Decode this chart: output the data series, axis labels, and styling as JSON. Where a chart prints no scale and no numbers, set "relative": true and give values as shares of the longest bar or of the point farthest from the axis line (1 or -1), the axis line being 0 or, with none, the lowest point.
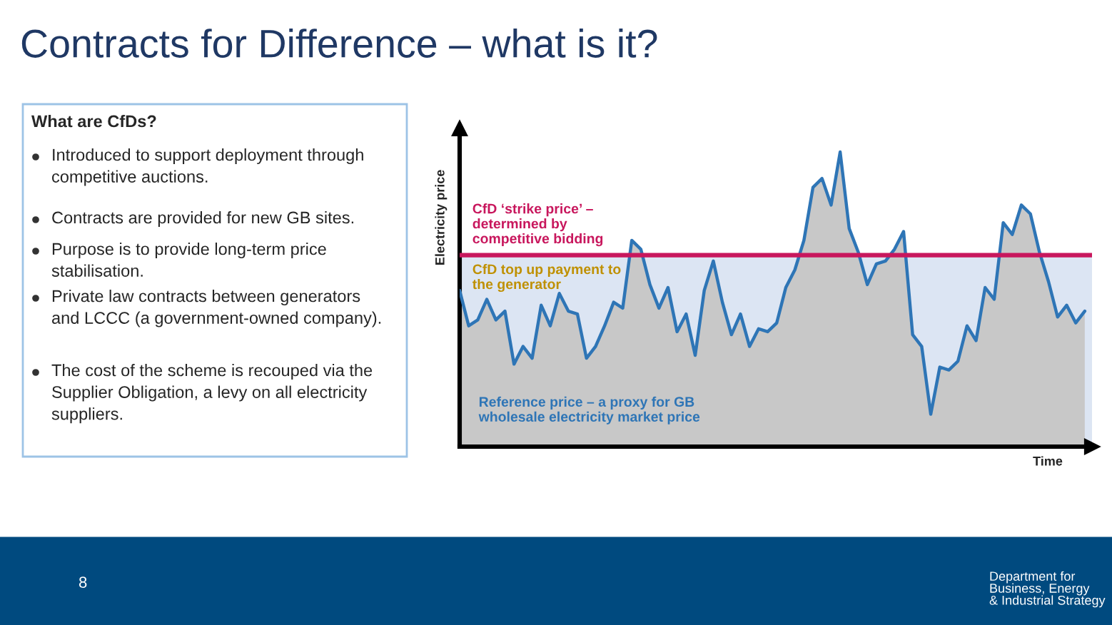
{
  "chart_data": [
    {
      "type": "other",
      "title": "Contracts for Difference – what is it?",
      "subtitle": "What are CfDs?",
      "annotations": [
        "Introduced to support deployment through competitive auctions.",
        "Contracts are provided for new GB sites.",
        "Purpose is to provide long-term price stabilisation.",
        "Private law contracts between generators and LCCC (a government-owned company).",
        "The cost of the scheme is recouped via the Supplier Obligation, a levy on all electricity suppliers.",
        "8",
        "Department for\nBusiness, Energy\n& Industrial Strategy"
      ]
    },
    {
      "type": "line",
      "relative": true,
      "ylabel": "Electricity price",
      "xlabel": "Time",
      "legend": false,
      "categories": [
        null,
        null,
        null,
        null,
        null,
        null,
        null,
        null,
        null,
        null,
        null,
        null,
        null,
        null,
        null,
        null,
        null,
        null,
        null,
        null,
        null,
        null,
        null,
        null,
        null,
        null,
        null,
        null,
        null,
        null,
        null,
        null,
        null,
        null,
        null,
        null,
        null,
        null,
        null,
        null,
        null,
        null,
        null,
        null,
        null,
        null,
        null,
        null,
        null,
        null,
        null,
        null,
        null,
        null,
        null,
        null,
        null,
        null,
        null,
        null,
        null,
        null,
        null,
        null,
        null,
        null,
        null,
        null,
        null,
        null
      ],
      "series": [
        {
          "name": "Reference price – a proxy for GB wholesale electricity market price",
          "type": "area",
          "color": "#2e75b6",
          "values": [
            0.53,
            0.41,
            0.43,
            0.5,
            0.43,
            0.46,
            0.28,
            0.34,
            0.3,
            0.48,
            0.41,
            0.52,
            0.46,
            0.45,
            0.3,
            0.34,
            0.41,
            0.49,
            0.47,
            0.7,
            0.67,
            0.55,
            0.47,
            0.54,
            0.39,
            0.45,
            0.31,
            0.53,
            0.63,
            0.49,
            0.38,
            0.45,
            0.34,
            0.4,
            0.39,
            0.42,
            0.54,
            0.6,
            0.7,
            0.88,
            0.91,
            0.82,
            1.0,
            0.74,
            0.66,
            0.55,
            0.62,
            0.63,
            0.67,
            0.73,
            0.38,
            0.34,
            0.11,
            0.27,
            0.26,
            0.29,
            0.41,
            0.36,
            0.54,
            0.5,
            0.76,
            0.72,
            0.82,
            0.79,
            0.66,
            0.56,
            0.44,
            0.48,
            0.42,
            0.46
          ]
        }
      ],
      "ref_lines": [
        {
          "axis": "y",
          "value": 0.65,
          "label": "CfD ‘strike price’ – determined by competitive bidding",
          "color": "#c8175d"
        }
      ],
      "bands": [
        {
          "axis": "y",
          "from": 0,
          "to": 0.65,
          "label": "CfD top up payment to the generator",
          "color": "#dce5f3"
        }
      ]
    }
  ]
}
